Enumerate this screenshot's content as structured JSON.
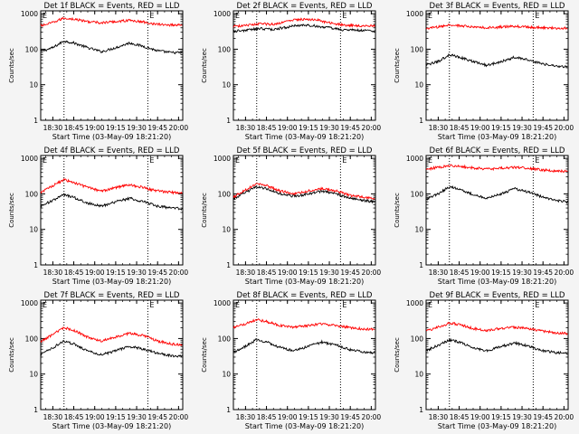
{
  "chart_data": [
    {
      "type": "line",
      "title": "Det 1f BLACK = Events, RED = LLD",
      "ylabel": "Counts/sec",
      "xlabel": "Start Time (03-May-09 18:21:20)",
      "x_ticks": [
        "18:30",
        "18:45",
        "19:00",
        "19:15",
        "19:30",
        "19:45",
        "20:00"
      ],
      "y_ticks": [
        "1",
        "10",
        "100",
        "1000"
      ],
      "y_scale": "log",
      "ylim": [
        1,
        1200
      ],
      "xlim": [
        "18:21:20",
        "20:03:00"
      ],
      "corner_marks": [
        "E",
        "E"
      ],
      "vlines": [
        "18:38",
        "19:38"
      ],
      "series": [
        {
          "color": "#000000",
          "x": [
            "18:21",
            "18:30",
            "18:38",
            "18:45",
            "18:55",
            "19:05",
            "19:15",
            "19:25",
            "19:35",
            "19:45",
            "19:55",
            "20:02"
          ],
          "values": [
            85,
            110,
            170,
            150,
            110,
            85,
            110,
            150,
            120,
            90,
            80,
            80
          ]
        },
        {
          "color": "#ff0000",
          "x": [
            "18:21",
            "18:30",
            "18:38",
            "18:45",
            "18:55",
            "19:05",
            "19:15",
            "19:25",
            "19:35",
            "19:45",
            "19:55",
            "20:02"
          ],
          "values": [
            450,
            560,
            750,
            700,
            600,
            550,
            600,
            650,
            580,
            500,
            480,
            490
          ]
        }
      ]
    },
    {
      "type": "line",
      "title": "Det 2f BLACK = Events, RED = LLD",
      "ylabel": "Counts/sec",
      "xlabel": "Start Time (03-May-09 18:21:20)",
      "x_ticks": [
        "18:30",
        "18:45",
        "19:00",
        "19:15",
        "19:30",
        "19:45",
        "20:00"
      ],
      "y_ticks": [
        "1",
        "10",
        "100",
        "1000"
      ],
      "y_scale": "log",
      "ylim": [
        1,
        1200
      ],
      "xlim": [
        "18:21:20",
        "20:03:00"
      ],
      "corner_marks": [
        "E",
        "E"
      ],
      "vlines": [
        "18:38",
        "19:38"
      ],
      "series": [
        {
          "color": "#000000",
          "x": [
            "18:21",
            "18:30",
            "18:40",
            "18:50",
            "19:00",
            "19:10",
            "19:20",
            "19:30",
            "19:40",
            "19:50",
            "20:02"
          ],
          "values": [
            320,
            340,
            380,
            360,
            420,
            480,
            450,
            400,
            350,
            340,
            330
          ]
        },
        {
          "color": "#ff0000",
          "x": [
            "18:21",
            "18:30",
            "18:40",
            "18:50",
            "19:00",
            "19:10",
            "19:20",
            "19:30",
            "19:40",
            "19:50",
            "20:02"
          ],
          "values": [
            440,
            460,
            520,
            500,
            620,
            700,
            680,
            550,
            480,
            460,
            450
          ]
        }
      ]
    },
    {
      "type": "line",
      "title": "Det 3f BLACK = Events, RED = LLD",
      "ylabel": "Counts/sec",
      "xlabel": "Start Time (03-May-09 18:21:20)",
      "x_ticks": [
        "18:30",
        "18:45",
        "19:00",
        "19:15",
        "19:30",
        "19:45",
        "20:00"
      ],
      "y_ticks": [
        "1",
        "10",
        "100",
        "1000"
      ],
      "y_scale": "log",
      "ylim": [
        1,
        1200
      ],
      "xlim": [
        "18:21:20",
        "20:03:00"
      ],
      "corner_marks": [
        "E",
        "E"
      ],
      "vlines": [
        "18:38",
        "19:38"
      ],
      "series": [
        {
          "color": "#000000",
          "x": [
            "18:21",
            "18:30",
            "18:38",
            "18:45",
            "18:55",
            "19:05",
            "19:15",
            "19:25",
            "19:35",
            "19:45",
            "19:55",
            "20:02"
          ],
          "values": [
            35,
            45,
            70,
            60,
            45,
            35,
            45,
            60,
            50,
            38,
            33,
            32
          ]
        },
        {
          "color": "#ff0000",
          "x": [
            "18:21",
            "18:30",
            "18:38",
            "18:45",
            "18:55",
            "19:05",
            "19:15",
            "19:25",
            "19:35",
            "19:45",
            "19:55",
            "20:02"
          ],
          "values": [
            380,
            420,
            480,
            460,
            420,
            400,
            420,
            440,
            420,
            400,
            390,
            390
          ]
        }
      ]
    },
    {
      "type": "line",
      "title": "Det 4f BLACK = Events, RED = LLD",
      "ylabel": "Counts/sec",
      "xlabel": "Start Time (03-May-09 18:21:20)",
      "x_ticks": [
        "18:30",
        "18:45",
        "19:00",
        "19:15",
        "19:30",
        "19:45",
        "20:00"
      ],
      "y_ticks": [
        "1",
        "10",
        "100",
        "1000"
      ],
      "y_scale": "log",
      "ylim": [
        1,
        1200
      ],
      "xlim": [
        "18:21:20",
        "20:03:00"
      ],
      "corner_marks": [
        "E",
        "E"
      ],
      "vlines": [
        "18:38",
        "19:38"
      ],
      "series": [
        {
          "color": "#000000",
          "x": [
            "18:21",
            "18:30",
            "18:38",
            "18:45",
            "18:55",
            "19:05",
            "19:15",
            "19:25",
            "19:35",
            "19:45",
            "19:55",
            "20:02"
          ],
          "values": [
            45,
            65,
            95,
            80,
            55,
            45,
            60,
            75,
            60,
            45,
            40,
            38
          ]
        },
        {
          "color": "#ff0000",
          "x": [
            "18:21",
            "18:30",
            "18:38",
            "18:45",
            "18:55",
            "19:05",
            "19:15",
            "19:25",
            "19:35",
            "19:45",
            "19:55",
            "20:02"
          ],
          "values": [
            110,
            170,
            250,
            210,
            150,
            120,
            150,
            180,
            150,
            120,
            110,
            105
          ]
        }
      ]
    },
    {
      "type": "line",
      "title": "Det 5f BLACK = Events, RED = LLD",
      "ylabel": "Counts/sec",
      "xlabel": "Start Time (03-May-09 18:21:20)",
      "x_ticks": [
        "18:30",
        "18:45",
        "19:00",
        "19:15",
        "19:30",
        "19:45",
        "20:00"
      ],
      "y_ticks": [
        "1",
        "10",
        "100",
        "1000"
      ],
      "y_scale": "log",
      "ylim": [
        1,
        1200
      ],
      "xlim": [
        "18:21:20",
        "20:03:00"
      ],
      "corner_marks": [
        "E",
        "E"
      ],
      "vlines": [
        "18:38",
        "19:38"
      ],
      "series": [
        {
          "color": "#000000",
          "x": [
            "18:21",
            "18:30",
            "18:38",
            "18:45",
            "18:55",
            "19:05",
            "19:15",
            "19:25",
            "19:35",
            "19:45",
            "19:55",
            "20:02"
          ],
          "values": [
            70,
            110,
            160,
            140,
            100,
            85,
            100,
            120,
            100,
            75,
            65,
            60
          ]
        },
        {
          "color": "#ff0000",
          "x": [
            "18:21",
            "18:30",
            "18:38",
            "18:45",
            "18:55",
            "19:05",
            "19:15",
            "19:25",
            "19:35",
            "19:45",
            "19:55",
            "20:02"
          ],
          "values": [
            80,
            130,
            200,
            170,
            120,
            100,
            120,
            140,
            120,
            90,
            80,
            75
          ]
        }
      ]
    },
    {
      "type": "line",
      "title": "Det 6f BLACK = Events, RED = LLD",
      "ylabel": "Counts/sec",
      "xlabel": "Start Time (03-May-09 18:21:20)",
      "x_ticks": [
        "18:30",
        "18:45",
        "19:00",
        "19:15",
        "19:30",
        "19:45",
        "20:00"
      ],
      "y_ticks": [
        "1",
        "10",
        "100",
        "1000"
      ],
      "y_scale": "log",
      "ylim": [
        1,
        1200
      ],
      "xlim": [
        "18:21:20",
        "20:03:00"
      ],
      "corner_marks": [
        "E",
        "E"
      ],
      "vlines": [
        "18:38",
        "19:38"
      ],
      "series": [
        {
          "color": "#000000",
          "x": [
            "18:21",
            "18:30",
            "18:38",
            "18:45",
            "18:55",
            "19:05",
            "19:15",
            "19:25",
            "19:35",
            "19:45",
            "19:55",
            "20:02"
          ],
          "values": [
            70,
            100,
            160,
            140,
            95,
            75,
            100,
            140,
            110,
            80,
            65,
            60
          ]
        },
        {
          "color": "#ff0000",
          "x": [
            "18:21",
            "18:30",
            "18:38",
            "18:45",
            "18:55",
            "19:05",
            "19:15",
            "19:25",
            "19:35",
            "19:45",
            "19:55",
            "20:02"
          ],
          "values": [
            480,
            560,
            620,
            600,
            540,
            500,
            530,
            560,
            520,
            470,
            440,
            430
          ]
        }
      ]
    },
    {
      "type": "line",
      "title": "Det 7f BLACK = Events, RED = LLD",
      "ylabel": "Counts/sec",
      "xlabel": "Start Time (03-May-09 18:21:20)",
      "x_ticks": [
        "18:30",
        "18:45",
        "19:00",
        "19:15",
        "19:30",
        "19:45",
        "20:00"
      ],
      "y_ticks": [
        "1",
        "10",
        "100",
        "1000"
      ],
      "y_scale": "log",
      "ylim": [
        1,
        1200
      ],
      "xlim": [
        "18:21:20",
        "20:03:00"
      ],
      "corner_marks": [
        "E",
        "E"
      ],
      "vlines": [
        "18:38",
        "19:38"
      ],
      "series": [
        {
          "color": "#000000",
          "x": [
            "18:21",
            "18:30",
            "18:38",
            "18:45",
            "18:55",
            "19:05",
            "19:15",
            "19:25",
            "19:35",
            "19:45",
            "19:55",
            "20:02"
          ],
          "values": [
            35,
            55,
            85,
            70,
            45,
            35,
            45,
            60,
            50,
            38,
            33,
            32
          ]
        },
        {
          "color": "#ff0000",
          "x": [
            "18:21",
            "18:30",
            "18:38",
            "18:45",
            "18:55",
            "19:05",
            "19:15",
            "19:25",
            "19:35",
            "19:45",
            "19:55",
            "20:02"
          ],
          "values": [
            80,
            130,
            200,
            170,
            110,
            85,
            110,
            140,
            120,
            85,
            70,
            68
          ]
        }
      ]
    },
    {
      "type": "line",
      "title": "Det 8f BLACK = Events, RED = LLD",
      "ylabel": "Counts/sec",
      "xlabel": "Start Time (03-May-09 18:21:20)",
      "x_ticks": [
        "18:30",
        "18:45",
        "19:00",
        "19:15",
        "19:30",
        "19:45",
        "20:00"
      ],
      "y_ticks": [
        "1",
        "10",
        "100",
        "1000"
      ],
      "y_scale": "log",
      "ylim": [
        1,
        1200
      ],
      "xlim": [
        "18:21:20",
        "20:03:00"
      ],
      "corner_marks": [
        "E",
        "E"
      ],
      "vlines": [
        "18:38",
        "19:38"
      ],
      "series": [
        {
          "color": "#000000",
          "x": [
            "18:21",
            "18:30",
            "18:38",
            "18:45",
            "18:55",
            "19:05",
            "19:15",
            "19:25",
            "19:35",
            "19:45",
            "19:55",
            "20:02"
          ],
          "values": [
            40,
            60,
            95,
            80,
            55,
            45,
            60,
            80,
            65,
            48,
            42,
            40
          ]
        },
        {
          "color": "#ff0000",
          "x": [
            "18:21",
            "18:30",
            "18:38",
            "18:45",
            "18:55",
            "19:05",
            "19:15",
            "19:25",
            "19:35",
            "19:45",
            "19:55",
            "20:02"
          ],
          "values": [
            200,
            260,
            340,
            300,
            230,
            210,
            230,
            260,
            230,
            200,
            185,
            180
          ]
        }
      ]
    },
    {
      "type": "line",
      "title": "Det 9f BLACK = Events, RED = LLD",
      "ylabel": "Counts/sec",
      "xlabel": "Start Time (03-May-09 18:21:20)",
      "x_ticks": [
        "18:30",
        "18:45",
        "19:00",
        "19:15",
        "19:30",
        "19:45",
        "20:00"
      ],
      "y_ticks": [
        "1",
        "10",
        "100",
        "1000"
      ],
      "y_scale": "log",
      "ylim": [
        1,
        1200
      ],
      "xlim": [
        "18:21:20",
        "20:03:00"
      ],
      "corner_marks": [
        "E",
        "E"
      ],
      "vlines": [
        "18:38",
        "19:38"
      ],
      "series": [
        {
          "color": "#000000",
          "x": [
            "18:21",
            "18:30",
            "18:38",
            "18:45",
            "18:55",
            "19:05",
            "19:15",
            "19:25",
            "19:35",
            "19:45",
            "19:55",
            "20:02"
          ],
          "values": [
            45,
            65,
            90,
            80,
            55,
            45,
            60,
            75,
            60,
            45,
            40,
            38
          ]
        },
        {
          "color": "#ff0000",
          "x": [
            "18:21",
            "18:30",
            "18:38",
            "18:45",
            "18:55",
            "19:05",
            "19:15",
            "19:25",
            "19:35",
            "19:45",
            "19:55",
            "20:02"
          ],
          "values": [
            160,
            210,
            270,
            250,
            190,
            170,
            190,
            210,
            190,
            160,
            145,
            140
          ]
        }
      ]
    }
  ]
}
